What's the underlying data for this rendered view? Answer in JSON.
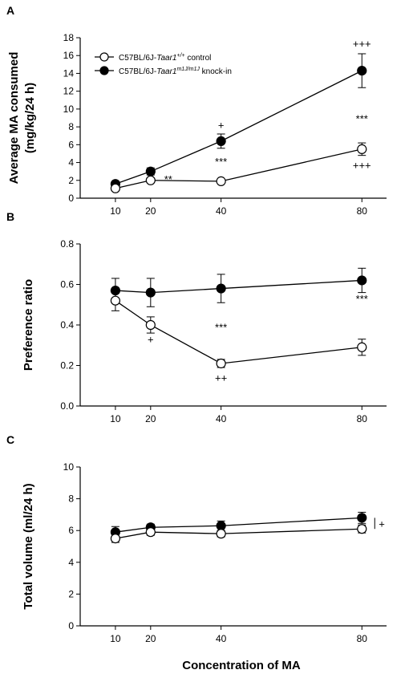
{
  "chart_data": [
    {
      "panel": "A",
      "type": "line",
      "x": [
        10,
        20,
        40,
        80
      ],
      "xticks": [
        "10",
        "20",
        "40",
        "80"
      ],
      "xlim": [
        0,
        87
      ],
      "ylim": [
        0,
        18
      ],
      "yticks": [
        0,
        2,
        4,
        6,
        8,
        10,
        12,
        14,
        16,
        18
      ],
      "ylabel_line1": "Average MA consumed",
      "ylabel_line2": "(mg/kg/24 h)",
      "legend": [
        {
          "prefix": "C57BL/6J-",
          "gene": "Taar1",
          "sup": "+/+",
          "suffix": " control",
          "marker": "open"
        },
        {
          "prefix": "C57BL/6J-",
          "gene": "Taar1",
          "sup": "m1J/m1J",
          "suffix": " knock-in",
          "marker": "filled"
        }
      ],
      "series": [
        {
          "marker": "filled",
          "values": [
            1.6,
            3.0,
            6.4,
            14.3
          ],
          "errors": [
            0.3,
            0.4,
            0.8,
            1.9
          ]
        },
        {
          "marker": "open",
          "values": [
            1.1,
            2.0,
            1.9,
            5.5
          ],
          "errors": [
            0.2,
            0.2,
            0.2,
            0.7
          ]
        }
      ],
      "annotations": [
        {
          "text": "**",
          "x": 25,
          "y": 1.7
        },
        {
          "text": "+",
          "x": 40,
          "y": 7.8
        },
        {
          "text": "***",
          "x": 40,
          "y": 3.7
        },
        {
          "text": "+++",
          "x": 80,
          "y": 16.9
        },
        {
          "text": "***",
          "x": 80,
          "y": 8.5
        },
        {
          "text": "+++",
          "x": 80,
          "y": 3.3
        }
      ]
    },
    {
      "panel": "B",
      "type": "line",
      "x": [
        10,
        20,
        40,
        80
      ],
      "xticks": [
        "10",
        "20",
        "40",
        "80"
      ],
      "xlim": [
        0,
        87
      ],
      "ylim": [
        0,
        0.8
      ],
      "yticks": [
        "0.0",
        "0.2",
        "0.4",
        "0.6",
        "0.8"
      ],
      "ylabel_line1": "Preference ratio",
      "series": [
        {
          "marker": "filled",
          "values": [
            0.57,
            0.56,
            0.58,
            0.62
          ],
          "errors": [
            0.06,
            0.07,
            0.07,
            0.06
          ]
        },
        {
          "marker": "open",
          "values": [
            0.52,
            0.4,
            0.21,
            0.29
          ],
          "errors": [
            0.05,
            0.04,
            0.02,
            0.04
          ]
        }
      ],
      "annotations": [
        {
          "text": "+",
          "x": 20,
          "y": 0.31
        },
        {
          "text": "***",
          "x": 40,
          "y": 0.37
        },
        {
          "text": "++",
          "x": 40,
          "y": 0.12
        },
        {
          "text": "***",
          "x": 80,
          "y": 0.51
        }
      ]
    },
    {
      "panel": "C",
      "type": "line",
      "x": [
        10,
        20,
        40,
        80
      ],
      "xticks": [
        "10",
        "20",
        "40",
        "80"
      ],
      "xlim": [
        0,
        87
      ],
      "ylim": [
        0,
        10
      ],
      "yticks": [
        0,
        2,
        4,
        6,
        8,
        10
      ],
      "ylabel_line1": "Total volume (ml/24 h)",
      "xlabel": "Concentration of MA",
      "series": [
        {
          "marker": "filled",
          "values": [
            5.9,
            6.2,
            6.3,
            6.8
          ],
          "errors": [
            0.35,
            0.2,
            0.3,
            0.35
          ]
        },
        {
          "marker": "open",
          "values": [
            5.5,
            5.9,
            5.8,
            6.1
          ],
          "errors": [
            0.25,
            0.2,
            0.2,
            0.25
          ]
        }
      ],
      "bracket": {
        "text": "+",
        "x": 80,
        "y_range": [
          6.1,
          6.8
        ]
      }
    }
  ]
}
